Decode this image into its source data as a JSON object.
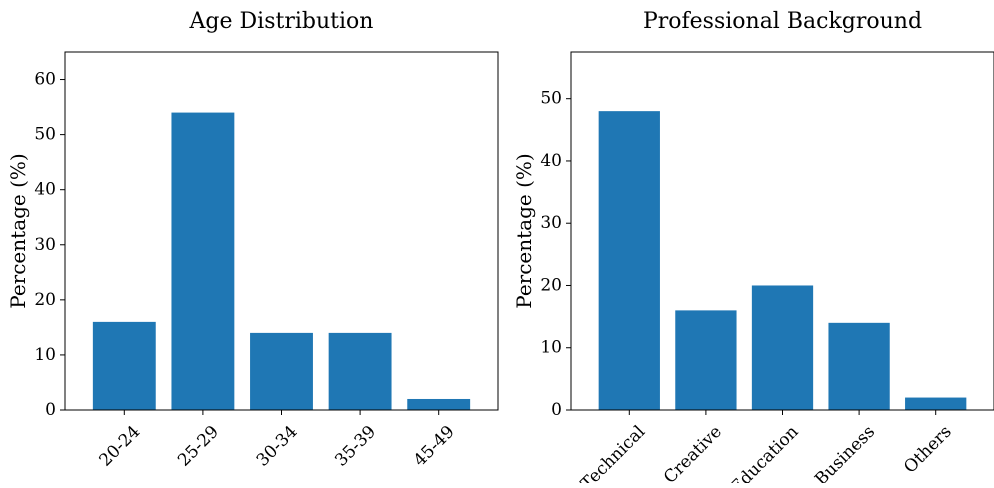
{
  "chart_data": [
    {
      "type": "bar",
      "title": "Age Distribution",
      "xlabel": "",
      "ylabel": "Percentage (%)",
      "categories": [
        "20-24",
        "25-29",
        "30-34",
        "35-39",
        "45-49"
      ],
      "values": [
        16,
        54,
        14,
        14,
        2
      ],
      "ylim": [
        0,
        65
      ],
      "yticks": [
        0,
        10,
        20,
        30,
        40,
        50,
        60
      ],
      "bar_color": "#1f77b4",
      "grid": false,
      "xtick_rotation": 45
    },
    {
      "type": "bar",
      "title": "Professional Background",
      "xlabel": "",
      "ylabel": "Percentage (%)",
      "categories": [
        "Technical",
        "Creative",
        "Education",
        "Business",
        "Others"
      ],
      "values": [
        48,
        16,
        20,
        14,
        2
      ],
      "ylim": [
        0,
        57.5
      ],
      "yticks": [
        0,
        10,
        20,
        30,
        40,
        50
      ],
      "bar_color": "#1f77b4",
      "grid": false,
      "xtick_rotation": 45
    }
  ]
}
